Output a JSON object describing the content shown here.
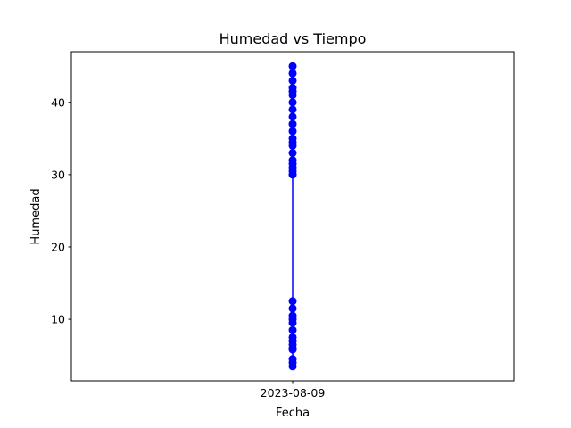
{
  "chart_data": {
    "type": "line",
    "title": "Humedad vs Tiempo",
    "xlabel": "Fecha",
    "ylabel": "Humedad",
    "x_ticks": [
      "2023-08-09"
    ],
    "y_ticks": [
      10,
      20,
      30,
      40
    ],
    "ylim": [
      1.5,
      47
    ],
    "grid": false,
    "series": [
      {
        "color": "#0000ff",
        "marker": "circle",
        "x": [
          "2023-08-09",
          "2023-08-09",
          "2023-08-09",
          "2023-08-09",
          "2023-08-09",
          "2023-08-09",
          "2023-08-09",
          "2023-08-09",
          "2023-08-09",
          "2023-08-09",
          "2023-08-09",
          "2023-08-09",
          "2023-08-09",
          "2023-08-09",
          "2023-08-09",
          "2023-08-09",
          "2023-08-09",
          "2023-08-09",
          "2023-08-09",
          "2023-08-09",
          "2023-08-09",
          "2023-08-09",
          "2023-08-09",
          "2023-08-09",
          "2023-08-09",
          "2023-08-09",
          "2023-08-09",
          "2023-08-09",
          "2023-08-09",
          "2023-08-09",
          "2023-08-09",
          "2023-08-09",
          "2023-08-09",
          "2023-08-09",
          "2023-08-09"
        ],
        "y": [
          45,
          44,
          43,
          42,
          41.5,
          41,
          40,
          39,
          38,
          37,
          36,
          35,
          34.5,
          34,
          33,
          32,
          31.5,
          31,
          30.5,
          30,
          30,
          12.5,
          11.5,
          10.5,
          10,
          9.5,
          8.5,
          7.5,
          7,
          6.5,
          6,
          5.8,
          4.5,
          4,
          3.5
        ]
      }
    ]
  }
}
